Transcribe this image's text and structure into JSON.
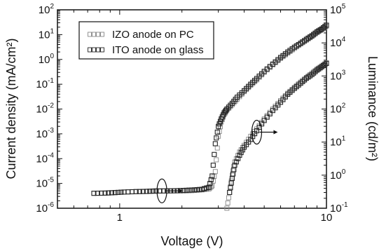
{
  "chart_data": {
    "type": "scatter",
    "xlabel": "Voltage (V)",
    "ylabel_left": "Current density (mA/cm²)",
    "ylabel_right": "Luminance (cd/m²)",
    "x_scale": "log",
    "y_scale_left": "log",
    "y_scale_right": "log",
    "xlim": [
      0.5,
      10
    ],
    "ylim_left": [
      1e-06,
      100
    ],
    "ylim_right": [
      0.1,
      100000
    ],
    "grid": false,
    "legend_position": "top-left",
    "x_tick_labels": [
      {
        "value": 1,
        "label": "1"
      },
      {
        "value": 10,
        "label": "10"
      }
    ],
    "y_left_tick_labels": [
      {
        "value": 1e-06,
        "base": "10",
        "exp": "-6"
      },
      {
        "value": 1e-05,
        "base": "10",
        "exp": "-5"
      },
      {
        "value": 0.0001,
        "base": "10",
        "exp": "-4"
      },
      {
        "value": 0.001,
        "base": "10",
        "exp": "-3"
      },
      {
        "value": 0.01,
        "base": "10",
        "exp": "-2"
      },
      {
        "value": 0.1,
        "base": "10",
        "exp": "-1"
      },
      {
        "value": 1,
        "base": "10",
        "exp": "0"
      },
      {
        "value": 10,
        "base": "10",
        "exp": "1"
      },
      {
        "value": 100,
        "base": "10",
        "exp": "2"
      }
    ],
    "y_right_tick_labels": [
      {
        "value": 0.1,
        "base": "10",
        "exp": "-1"
      },
      {
        "value": 1,
        "base": "10",
        "exp": "0"
      },
      {
        "value": 10,
        "base": "10",
        "exp": "1"
      },
      {
        "value": 100,
        "base": "10",
        "exp": "2"
      },
      {
        "value": 1000,
        "base": "10",
        "exp": "3"
      },
      {
        "value": 10000,
        "base": "10",
        "exp": "4"
      },
      {
        "value": 100000,
        "base": "10",
        "exp": "5"
      }
    ],
    "series": [
      {
        "name": "IZO anode on PC",
        "quantity": "current_density",
        "axis": "left",
        "marker": "open-square-light",
        "x": [
          0.75,
          0.85,
          0.95,
          1.05,
          1.2,
          1.35,
          1.5,
          1.7,
          1.9,
          2.1,
          2.3,
          2.5,
          2.7,
          2.8,
          2.9,
          3.0,
          3.1,
          3.2,
          3.3,
          3.5,
          3.7,
          4.0,
          4.3,
          4.6,
          5.0,
          5.5,
          6.0,
          6.5,
          7.0,
          7.5,
          8.0,
          8.5,
          9.0,
          9.5,
          10.0
        ],
        "y": [
          4e-06,
          4e-06,
          4.2e-06,
          4.5e-06,
          4.6e-06,
          4.7e-06,
          4.8e-06,
          5e-06,
          5e-06,
          5e-06,
          5.2e-06,
          5.5e-06,
          6e-06,
          8e-06,
          3e-05,
          0.0008,
          0.003,
          0.006,
          0.009,
          0.015,
          0.025,
          0.05,
          0.09,
          0.15,
          0.3,
          0.6,
          1.1,
          1.8,
          2.8,
          4.2,
          6,
          8.5,
          12,
          16,
          22
        ]
      },
      {
        "name": "ITO anode on glass",
        "quantity": "current_density",
        "axis": "left",
        "marker": "open-square",
        "x": [
          0.75,
          0.85,
          0.95,
          1.05,
          1.2,
          1.35,
          1.5,
          1.7,
          1.9,
          2.1,
          2.3,
          2.5,
          2.7,
          2.8,
          2.9,
          3.0,
          3.1,
          3.2,
          3.3,
          3.5,
          3.7,
          4.0,
          4.3,
          4.6,
          5.0,
          5.5,
          6.0,
          6.5,
          7.0,
          7.5,
          8.0,
          8.5,
          9.0,
          9.5,
          10.0
        ],
        "y": [
          4e-06,
          4.1e-06,
          4.3e-06,
          4.5e-06,
          4.7e-06,
          4.8e-06,
          5e-06,
          5e-06,
          5.1e-06,
          5.3e-06,
          5.5e-06,
          5.8e-06,
          7e-06,
          2e-05,
          0.0004,
          0.002,
          0.004,
          0.007,
          0.01,
          0.017,
          0.03,
          0.055,
          0.1,
          0.17,
          0.33,
          0.65,
          1.2,
          2,
          3.1,
          4.5,
          6.5,
          9,
          13,
          17,
          24
        ]
      },
      {
        "name": "IZO anode on PC",
        "quantity": "luminance",
        "axis": "right",
        "marker": "open-square-light",
        "x": [
          3.3,
          3.4,
          3.5,
          3.6,
          3.8,
          4.0,
          4.3,
          4.6,
          5.0,
          5.5,
          6.0,
          6.5,
          7.0,
          7.5,
          8.0,
          8.5,
          9.0,
          9.5,
          10.0
        ],
        "y": [
          0.1,
          0.3,
          1,
          2.5,
          5,
          8,
          15,
          25,
          50,
          100,
          180,
          300,
          450,
          650,
          900,
          1200,
          1600,
          2000,
          2500
        ]
      },
      {
        "name": "ITO anode on glass",
        "quantity": "luminance",
        "axis": "right",
        "marker": "open-square",
        "x": [
          3.4,
          3.5,
          3.6,
          3.8,
          4.0,
          4.3,
          4.6,
          5.0,
          5.5,
          6.0,
          6.5,
          7.0,
          7.5,
          8.0,
          8.5,
          9.0,
          9.5,
          10.0
        ],
        "y": [
          0.3,
          0.8,
          2,
          4,
          7,
          12,
          22,
          45,
          90,
          160,
          280,
          420,
          600,
          850,
          1100,
          1500,
          1900,
          2400
        ]
      }
    ],
    "annotations": [
      {
        "type": "ellipse-arrow",
        "target_axis": "left",
        "x": 1.6,
        "y": 5e-06,
        "arrow_direction": "right"
      },
      {
        "type": "ellipse-arrow",
        "target_axis": "right",
        "x": 4.6,
        "y": 20,
        "arrow_direction": "right"
      }
    ]
  }
}
